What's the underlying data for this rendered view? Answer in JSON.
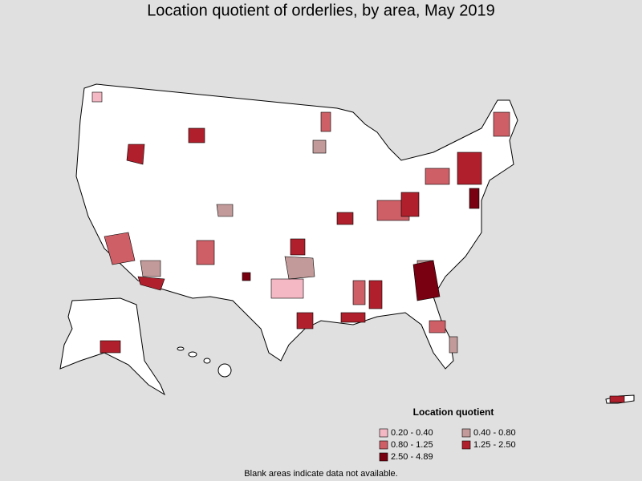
{
  "title": "Location quotient of orderlies, by area, May 2019",
  "legend": {
    "title": "Location quotient",
    "items": [
      {
        "label": "0.20 - 0.40",
        "color": "#f4b8c4"
      },
      {
        "label": "0.40 - 0.80",
        "color": "#c29a9a"
      },
      {
        "label": "0.80 - 1.25",
        "color": "#cf5f67"
      },
      {
        "label": "1.25 - 2.50",
        "color": "#b0202c"
      },
      {
        "label": "2.50 - 4.89",
        "color": "#780010"
      }
    ]
  },
  "footnote": "Blank areas indicate data not available."
}
